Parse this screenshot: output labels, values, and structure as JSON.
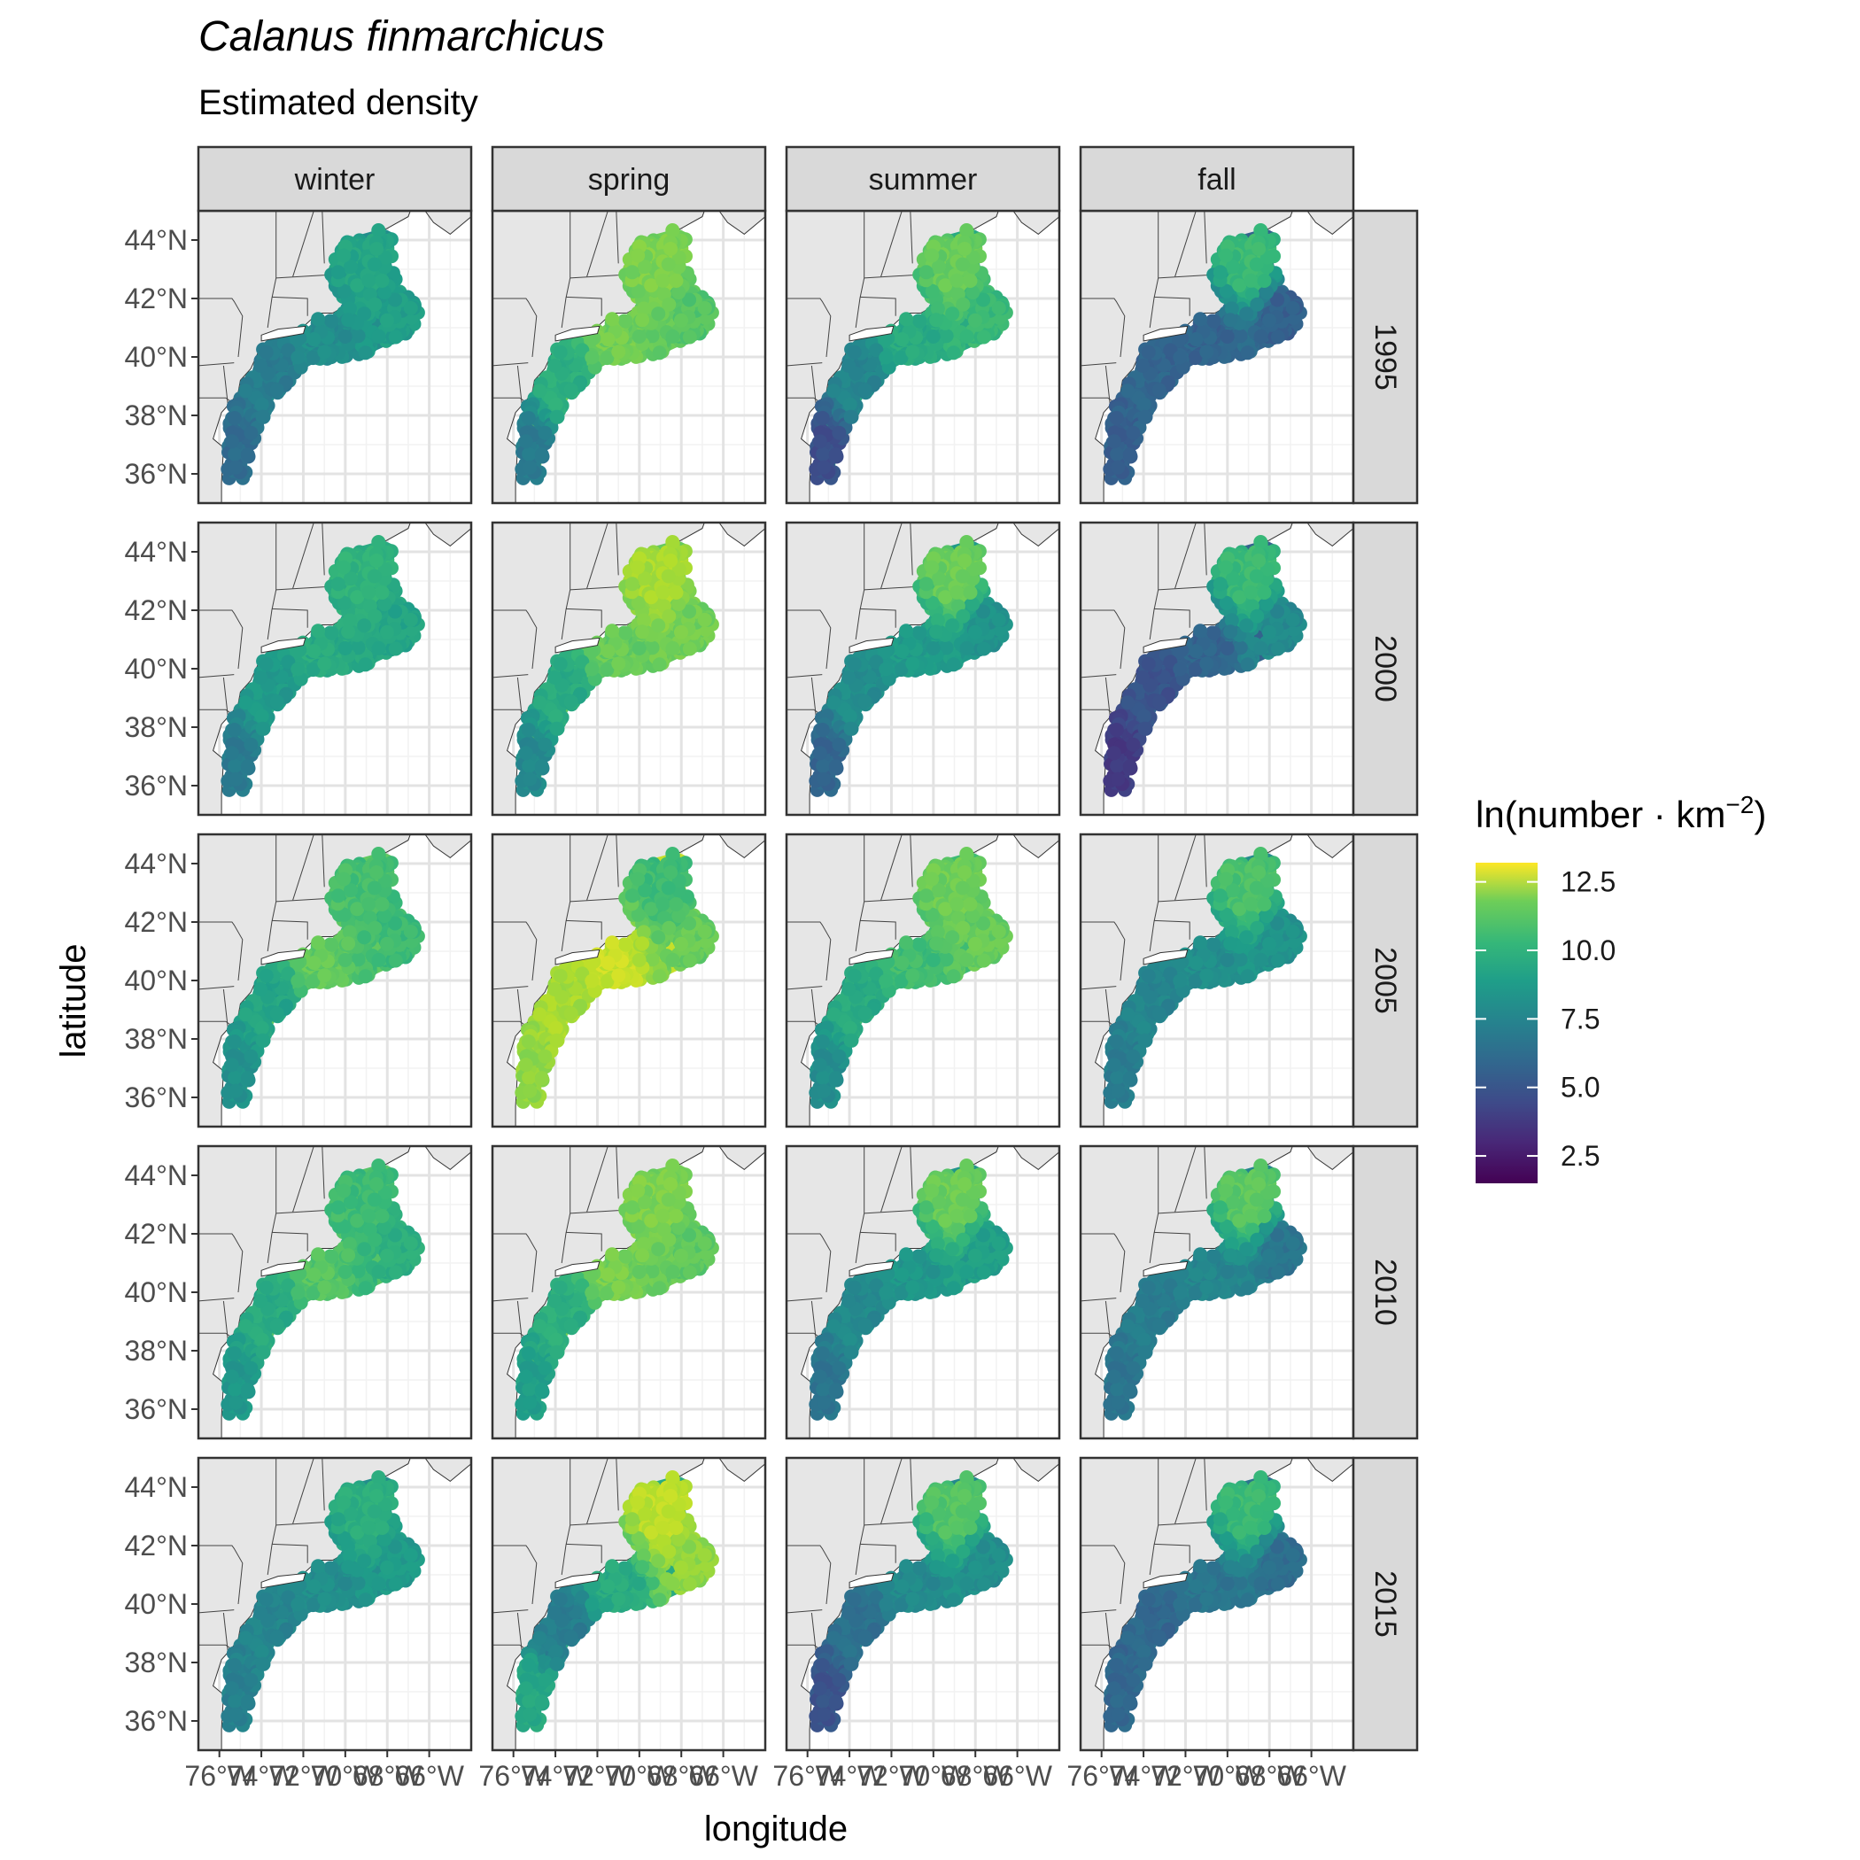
{
  "title": "Calanus finmarchicus",
  "subtitle": "Estimated density",
  "chart_data": {
    "type": "heatmap",
    "title": "Calanus finmarchicus",
    "subtitle": "Estimated density",
    "xlabel": "longitude",
    "ylabel": "latitude",
    "x_ticks": [
      "76°W",
      "74°W",
      "72°W",
      "70°W",
      "68°W",
      "66°W"
    ],
    "y_ticks": [
      "36°N",
      "38°N",
      "40°N",
      "42°N",
      "44°N"
    ],
    "xlim": [
      -77,
      -64
    ],
    "ylim": [
      35,
      45
    ],
    "grid": true,
    "columns": [
      "winter",
      "spring",
      "summer",
      "fall"
    ],
    "rows": [
      "1995",
      "2000",
      "2005",
      "2010",
      "2015"
    ],
    "legend": {
      "title_main": "ln(number · km",
      "title_sup": "−2",
      "title_close": ")",
      "breaks": [
        "12.5",
        "10.0",
        "7.5",
        "5.0",
        "2.5"
      ],
      "min": 1.5,
      "max": 13.2,
      "placement": "right",
      "colors": [
        "#440154",
        "#3b528b",
        "#21918c",
        "#5ec962",
        "#fde725"
      ]
    },
    "panel_values": {
      "description_keys": [
        "north_gulf",
        "georges_bank",
        "southern_new_england",
        "mid_atlantic",
        "south_tip"
      ],
      "1995": {
        "winter": [
          8.3,
          8.0,
          7.2,
          6.4,
          5.6
        ],
        "spring": [
          10.8,
          10.0,
          10.6,
          8.8,
          6.3
        ],
        "summer": [
          10.4,
          9.3,
          8.6,
          6.8,
          4.3
        ],
        "fall": [
          9.4,
          5.0,
          5.2,
          5.3,
          5.0
        ]
      },
      "2000": {
        "winter": [
          9.0,
          8.3,
          8.6,
          7.8,
          6.3
        ],
        "spring": [
          11.6,
          10.6,
          10.4,
          8.6,
          7.0
        ],
        "summer": [
          10.5,
          7.4,
          7.8,
          7.2,
          5.3
        ],
        "fall": [
          9.4,
          7.0,
          5.2,
          4.5,
          3.5
        ]
      },
      "2005": {
        "winter": [
          9.6,
          9.4,
          10.3,
          8.3,
          7.4
        ],
        "spring": [
          9.4,
          10.4,
          12.2,
          11.6,
          11.2
        ],
        "summer": [
          10.5,
          10.4,
          9.5,
          8.6,
          7.2
        ],
        "fall": [
          9.8,
          7.4,
          7.2,
          6.8,
          6.4
        ]
      },
      "2010": {
        "winter": [
          9.4,
          8.8,
          10.0,
          8.6,
          7.7
        ],
        "spring": [
          10.8,
          10.2,
          10.7,
          8.8,
          8.0
        ],
        "summer": [
          10.5,
          8.0,
          7.6,
          7.0,
          6.0
        ],
        "fall": [
          10.2,
          6.0,
          6.8,
          6.4,
          6.0
        ]
      },
      "2015": {
        "winter": [
          8.8,
          7.8,
          7.2,
          6.8,
          6.6
        ],
        "spring": [
          12.0,
          11.2,
          8.6,
          6.4,
          8.5
        ],
        "summer": [
          10.0,
          7.2,
          7.0,
          5.8,
          4.5
        ],
        "fall": [
          9.4,
          5.6,
          6.0,
          5.4,
          5.4
        ]
      }
    }
  }
}
